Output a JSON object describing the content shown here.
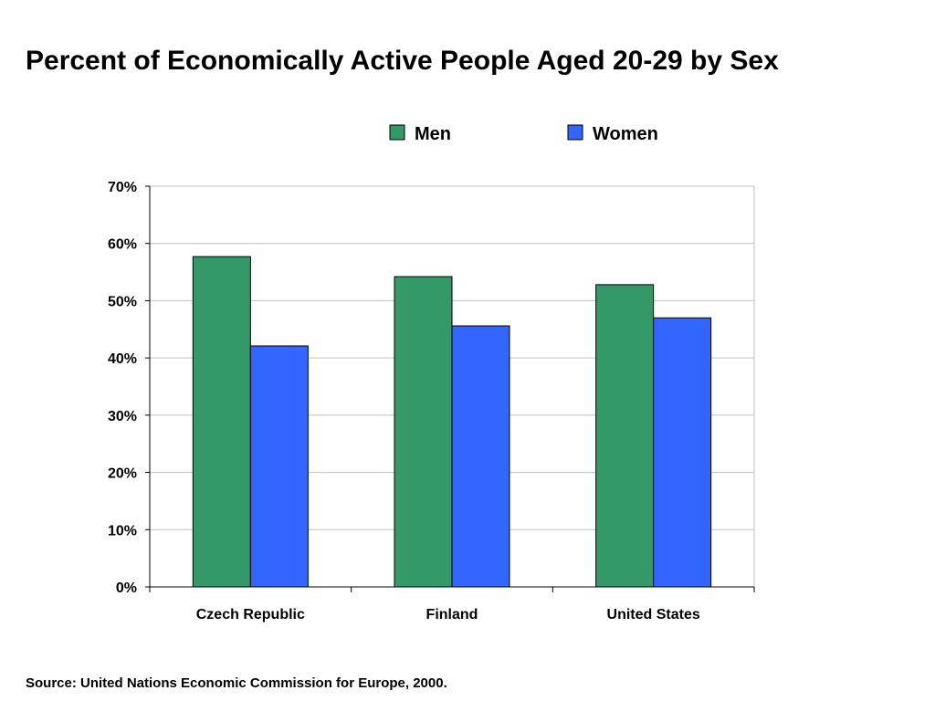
{
  "chart_data": {
    "type": "bar",
    "title": "Percent of Economically Active People Aged 20-29 by Sex",
    "categories": [
      "Czech Republic",
      "Finland",
      "United States"
    ],
    "series": [
      {
        "name": "Men",
        "values": [
          57.7,
          54.2,
          52.8
        ]
      },
      {
        "name": "Women",
        "values": [
          42.1,
          45.6,
          47.0
        ]
      }
    ],
    "y_ticks": [
      "0%",
      "10%",
      "20%",
      "30%",
      "40%",
      "50%",
      "60%",
      "70%"
    ],
    "ylim": [
      0,
      70
    ],
    "xlabel": "",
    "ylabel": "",
    "grid": true,
    "legend_position": "top-right",
    "colors": {
      "Men": "#339966",
      "Women": "#3366ff"
    }
  },
  "source": "Source: United Nations Economic Commission for Europe, 2000."
}
